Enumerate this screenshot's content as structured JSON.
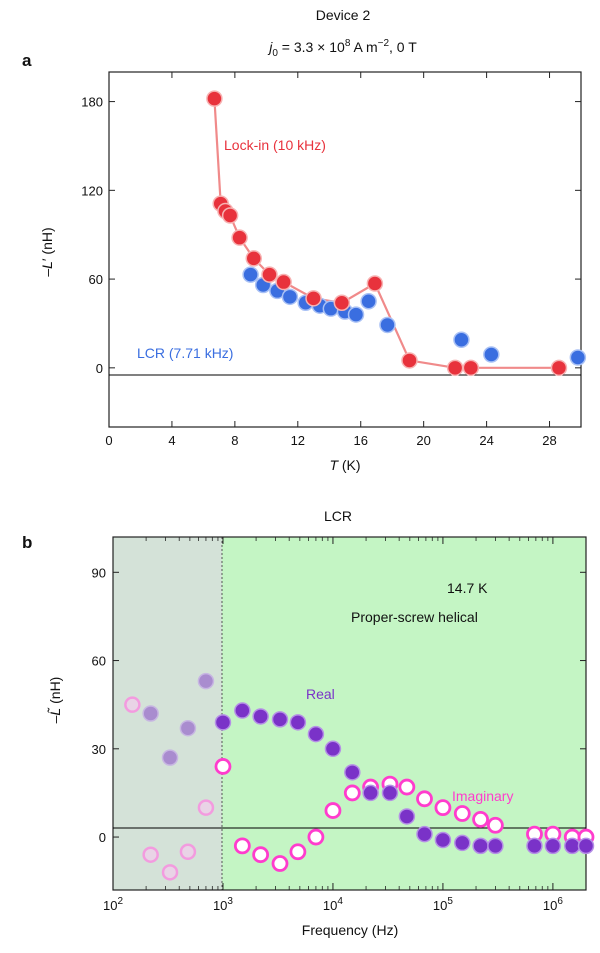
{
  "colors": {
    "lockin_fill": "#e8323c",
    "lockin_line": "#f08a8a",
    "lcr_fill": "#3a6ee0",
    "real_fill": "#7a32c8",
    "imag_stroke": "#ff3ccd",
    "bg_green": "#c4f5c4",
    "bg_gray": "#d4e2d8"
  },
  "chart_data": [
    {
      "type": "scatter",
      "panel": "a",
      "title": "Device 2",
      "subtitle": "j0 = 3.3 × 10⁸ A m⁻², 0 T",
      "xlabel": "T (K)",
      "ylabel": "−L′ (nH)",
      "xlim": [
        0,
        30
      ],
      "ylim": [
        -40,
        200
      ],
      "xticks": [
        "0",
        "4",
        "8",
        "12",
        "16",
        "20",
        "24",
        "28"
      ],
      "yticks": [
        "0",
        "60",
        "120",
        "180"
      ],
      "series": [
        {
          "name": "Lock-in (10 kHz)",
          "x": [
            6.7,
            7.1,
            7.4,
            7.7,
            8.3,
            9.2,
            10.2,
            11.1,
            13.0,
            14.8,
            16.9,
            19.1,
            22.0,
            23.0,
            28.6
          ],
          "y": [
            182,
            111,
            106,
            103,
            88,
            74,
            63,
            58,
            47,
            44,
            57,
            5,
            0,
            0,
            0
          ]
        },
        {
          "name": "LCR (7.71 kHz)",
          "x": [
            9.0,
            9.8,
            10.7,
            11.5,
            12.5,
            13.4,
            14.1,
            15.0,
            15.7,
            16.5,
            17.7,
            22.4,
            24.3,
            29.8
          ],
          "y": [
            63,
            56,
            52,
            48,
            44,
            42,
            40,
            38,
            36,
            45,
            29,
            19,
            9,
            7
          ]
        }
      ]
    },
    {
      "type": "scatter",
      "panel": "b",
      "title": "LCR",
      "xlabel": "Frequency (Hz)",
      "ylabel": "−L̃ (nH)",
      "xscale": "log",
      "xlim": [
        100,
        2000000
      ],
      "ylim": [
        -18,
        102
      ],
      "yticks": [
        "0",
        "30",
        "60",
        "90"
      ],
      "xticks": [
        "10²",
        "10³",
        "10⁴",
        "10⁵",
        "10⁶"
      ],
      "annotations": [
        "14.7 K",
        "Proper-screw helical"
      ],
      "series": [
        {
          "name": "Real",
          "x": [
            1000,
            1500,
            2200,
            3300,
            4800,
            7000,
            10000,
            15000,
            22000,
            33000,
            47000,
            68000,
            100000,
            150000,
            220000,
            300000,
            680000,
            1000000,
            1500000,
            2000000
          ],
          "y": [
            39,
            43,
            41,
            40,
            39,
            35,
            30,
            22,
            15,
            15,
            7,
            1,
            -1,
            -2,
            -3,
            -3,
            -3,
            -3,
            -3,
            -3
          ]
        },
        {
          "name": "Imaginary",
          "x": [
            1000,
            1500,
            2200,
            3300,
            4800,
            7000,
            10000,
            15000,
            22000,
            33000,
            47000,
            68000,
            100000,
            150000,
            220000,
            300000,
            680000,
            1000000,
            1500000,
            2000000
          ],
          "y": [
            24,
            -3,
            -6,
            -9,
            -5,
            0,
            9,
            15,
            17,
            18,
            17,
            13,
            10,
            8,
            6,
            4,
            1,
            1,
            0,
            0
          ]
        },
        {
          "name": "Real (shaded region)",
          "x": [
            220,
            330,
            480,
            700
          ],
          "y": [
            42,
            27,
            37,
            53
          ]
        },
        {
          "name": "Imaginary (shaded region)",
          "x": [
            150,
            220,
            330,
            480,
            700
          ],
          "y": [
            45,
            -6,
            -12,
            -5,
            10
          ]
        }
      ]
    }
  ],
  "labels": {
    "panel_a": "a",
    "panel_b": "b",
    "lockin": "Lock-in (10 kHz)",
    "lcr": "LCR  (7.71 kHz)",
    "real": "Real",
    "imag": "Imaginary",
    "temp": "14.7 K",
    "helical": "Proper-screw helical"
  }
}
